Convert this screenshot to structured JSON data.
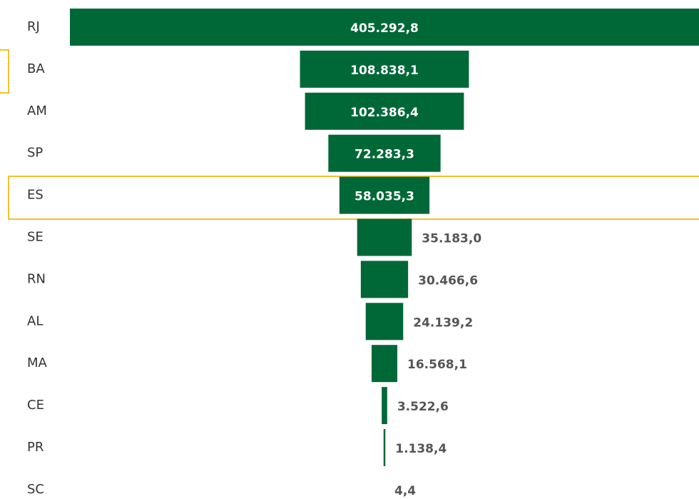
{
  "chart_data": {
    "type": "funnel",
    "categories": [
      "RJ",
      "BA",
      "AM",
      "SP",
      "ES",
      "SE",
      "RN",
      "AL",
      "MA",
      "CE",
      "PR",
      "SC"
    ],
    "values": [
      405292.8,
      108838.1,
      102386.4,
      72283.3,
      58035.3,
      35183.0,
      30466.6,
      24139.2,
      16568.1,
      3522.6,
      1138.4,
      4.4
    ],
    "value_labels": [
      "405.292,8",
      "108.838,1",
      "102.386,4",
      "72.283,3",
      "58.035,3",
      "35.183,0",
      "30.466,6",
      "24.139,2",
      "16.568,1",
      "3.522,6",
      "1.138,4",
      "4,4"
    ],
    "color": "#006837"
  }
}
